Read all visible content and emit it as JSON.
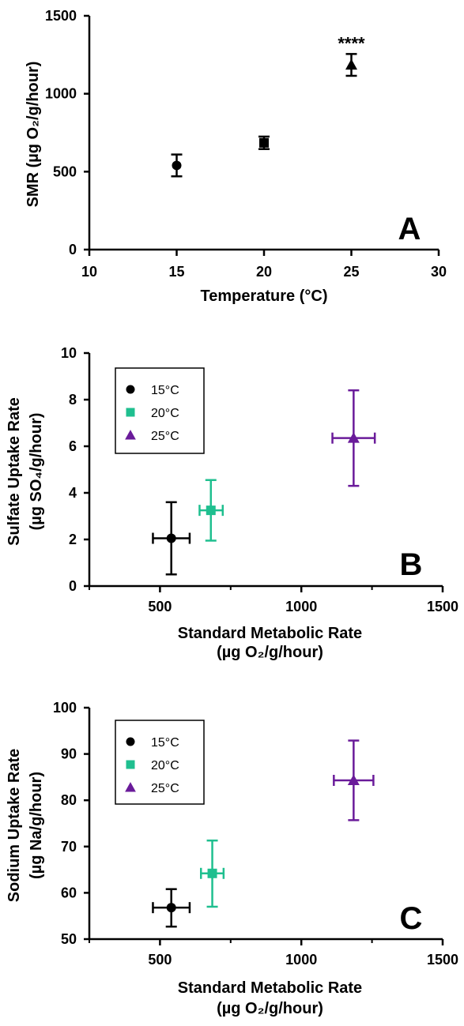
{
  "chart_data": [
    {
      "panel": "A",
      "type": "scatter",
      "xlabel": "Temperature (°C)",
      "ylabel": "SMR (µg O₂/g/hour)",
      "xlim": [
        10,
        30
      ],
      "ylim": [
        0,
        1500
      ],
      "xticks": [
        10,
        15,
        20,
        25,
        30
      ],
      "yticks": [
        0,
        500,
        1000,
        1500
      ],
      "legend": null,
      "series": [
        {
          "label": "15°C",
          "marker": "circle",
          "color": "#000000",
          "x": 15,
          "y": 540,
          "yerr": [
            470,
            610
          ]
        },
        {
          "label": "20°C",
          "marker": "square",
          "color": "#000000",
          "x": 20,
          "y": 685,
          "yerr": [
            645,
            725
          ]
        },
        {
          "label": "25°C",
          "marker": "triangle",
          "color": "#000000",
          "x": 25,
          "y": 1185,
          "yerr": [
            1115,
            1255
          ],
          "annotation": "****"
        }
      ]
    },
    {
      "panel": "B",
      "type": "scatter",
      "xlabel": [
        "Standard Metabolic Rate",
        "(µg O₂/g/hour)"
      ],
      "ylabel": [
        "Sulfate Uptake Rate",
        "(µg SO₄/g/hour)"
      ],
      "xlim": [
        250,
        1500
      ],
      "ylim": [
        0,
        10
      ],
      "xticks": [
        500,
        1000,
        1500
      ],
      "xminor": [
        250,
        750,
        1250
      ],
      "yticks": [
        0,
        2,
        4,
        6,
        8,
        10
      ],
      "legend": "top-left",
      "series": [
        {
          "name": "15°C",
          "marker": "circle",
          "color": "#000000",
          "x": 540,
          "y": 2.05,
          "xerr": [
            475,
            605
          ],
          "yerr": [
            0.5,
            3.6
          ]
        },
        {
          "name": "20°C",
          "marker": "square",
          "color": "#1fbf8f",
          "x": 680,
          "y": 3.25,
          "xerr": [
            640,
            722
          ],
          "yerr": [
            1.95,
            4.55
          ]
        },
        {
          "name": "25°C",
          "marker": "triangle",
          "color": "#6a1b9a",
          "x": 1185,
          "y": 6.35,
          "xerr": [
            1110,
            1260
          ],
          "yerr": [
            4.3,
            8.4
          ]
        }
      ]
    },
    {
      "panel": "C",
      "type": "scatter",
      "xlabel": [
        "Standard Metabolic Rate",
        "(µg O₂/g/hour)"
      ],
      "ylabel": [
        "Sodium Uptake Rate",
        "(µg Na/g/hour)"
      ],
      "xlim": [
        250,
        1500
      ],
      "ylim": [
        50,
        100
      ],
      "xticks": [
        500,
        1000,
        1500
      ],
      "xminor": [
        250,
        750,
        1250
      ],
      "yticks": [
        50,
        60,
        70,
        80,
        90,
        100
      ],
      "legend": "top-left",
      "series": [
        {
          "name": "15°C",
          "marker": "circle",
          "color": "#000000",
          "x": 540,
          "y": 56.8,
          "xerr": [
            475,
            605
          ],
          "yerr": [
            52.7,
            60.8
          ]
        },
        {
          "name": "20°C",
          "marker": "square",
          "color": "#1fbf8f",
          "x": 685,
          "y": 64.2,
          "xerr": [
            645,
            725
          ],
          "yerr": [
            57.0,
            71.3
          ]
        },
        {
          "name": "25°C",
          "marker": "triangle",
          "color": "#6a1b9a",
          "x": 1185,
          "y": 84.3,
          "xerr": [
            1115,
            1255
          ],
          "yerr": [
            75.7,
            92.9
          ]
        }
      ]
    }
  ]
}
